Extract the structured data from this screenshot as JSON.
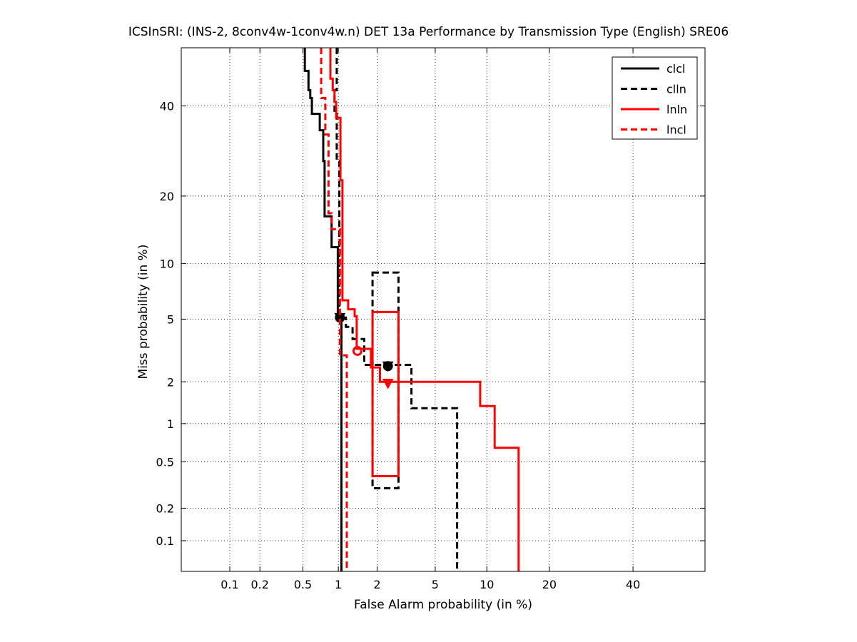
{
  "chart_data": {
    "type": "line",
    "title": "ICSInSRI: (INS-2, 8conv4w-1conv4w.n) DET 13a Performance by Transmission Type (English) SRE06",
    "xlabel": "False Alarm probability (in %)",
    "ylabel": "Miss probability (in %)",
    "x_scale": "probit",
    "y_scale": "probit",
    "xlim": [
      0.03,
      60
    ],
    "ylim": [
      0.05,
      55
    ],
    "x_ticks": [
      0.1,
      0.2,
      0.5,
      1,
      2,
      5,
      10,
      20,
      40
    ],
    "x_tick_labels": [
      "0.1",
      "0.2",
      "0.5",
      "1",
      "2",
      "5",
      "10",
      "20",
      "40"
    ],
    "y_ticks": [
      0.1,
      0.2,
      0.5,
      1,
      2,
      5,
      10,
      20,
      40
    ],
    "y_tick_labels": [
      "0.1",
      "0.2",
      "0.5",
      "1",
      "2",
      "5",
      "10",
      "20",
      "40"
    ],
    "grid": true,
    "legend_position": "top-right",
    "series": [
      {
        "name": "clcl",
        "color": "#000000",
        "dash": "solid",
        "points": [
          [
            0.52,
            55
          ],
          [
            0.52,
            49
          ],
          [
            0.56,
            49
          ],
          [
            0.56,
            44
          ],
          [
            0.58,
            44
          ],
          [
            0.58,
            42
          ],
          [
            0.6,
            42
          ],
          [
            0.6,
            38
          ],
          [
            0.7,
            38
          ],
          [
            0.7,
            34
          ],
          [
            0.75,
            34
          ],
          [
            0.75,
            27
          ],
          [
            0.77,
            27
          ],
          [
            0.77,
            16.5
          ],
          [
            0.88,
            16.5
          ],
          [
            0.88,
            12
          ],
          [
            0.99,
            12
          ],
          [
            0.99,
            5.1
          ],
          [
            1.06,
            5.1
          ],
          [
            1.06,
            0.05
          ]
        ],
        "min_dcf": [
          1.03,
          5.1
        ],
        "act_dcf": [
          1.03,
          5.1
        ]
      },
      {
        "name": "clln",
        "color": "#000000",
        "dash": "dashed",
        "points": [
          [
            0.97,
            55
          ],
          [
            0.97,
            44
          ],
          [
            0.93,
            44
          ],
          [
            0.93,
            38
          ],
          [
            0.97,
            38
          ],
          [
            0.97,
            27
          ],
          [
            1.02,
            27
          ],
          [
            1.02,
            5.1
          ],
          [
            1.15,
            5.1
          ],
          [
            1.15,
            4.5
          ],
          [
            1.3,
            4.5
          ],
          [
            1.3,
            3.8
          ],
          [
            1.6,
            3.8
          ],
          [
            1.6,
            2.6
          ],
          [
            2.4,
            2.6
          ],
          [
            2.4,
            2.6
          ],
          [
            3.5,
            2.6
          ],
          [
            3.5,
            1.3
          ],
          [
            6.8,
            1.3
          ],
          [
            6.8,
            0.05
          ]
        ],
        "min_dcf": [
          2.4,
          2.55
        ],
        "act_dcf": [
          2.4,
          2.55
        ],
        "confidence_box": {
          "x": [
            1.85,
            2.85
          ],
          "y": [
            0.3,
            9.0
          ]
        }
      },
      {
        "name": "lnln",
        "color": "#ff0000",
        "dash": "solid",
        "points": [
          [
            0.86,
            55
          ],
          [
            0.86,
            47
          ],
          [
            0.9,
            47
          ],
          [
            0.9,
            44
          ],
          [
            0.93,
            44
          ],
          [
            0.93,
            41
          ],
          [
            0.96,
            41
          ],
          [
            0.96,
            37
          ],
          [
            1.04,
            37
          ],
          [
            1.04,
            23
          ],
          [
            1.08,
            23
          ],
          [
            1.08,
            6.4
          ],
          [
            1.2,
            6.4
          ],
          [
            1.2,
            5.7
          ],
          [
            1.35,
            5.7
          ],
          [
            1.35,
            5.2
          ],
          [
            1.4,
            5.2
          ],
          [
            1.4,
            3.3
          ],
          [
            1.8,
            3.3
          ],
          [
            1.8,
            2.5
          ],
          [
            2.1,
            2.5
          ],
          [
            2.1,
            2.0
          ],
          [
            9.2,
            2.0
          ],
          [
            9.2,
            1.35
          ],
          [
            11,
            1.35
          ],
          [
            11,
            0.65
          ],
          [
            14.5,
            0.65
          ],
          [
            14.5,
            0.05
          ]
        ],
        "min_dcf": [
          1.42,
          3.2
        ],
        "act_dcf": [
          2.4,
          1.95
        ],
        "confidence_box": {
          "x": [
            1.85,
            2.85
          ],
          "y": [
            0.38,
            5.5
          ]
        }
      },
      {
        "name": "lncl",
        "color": "#ff0000",
        "dash": "dashed",
        "points": [
          [
            0.72,
            55
          ],
          [
            0.72,
            42
          ],
          [
            0.78,
            42
          ],
          [
            0.78,
            33
          ],
          [
            0.83,
            33
          ],
          [
            0.83,
            17
          ],
          [
            0.88,
            17
          ],
          [
            0.88,
            14.5
          ],
          [
            1.03,
            14.5
          ],
          [
            1.03,
            3.0
          ],
          [
            1.17,
            3.0
          ],
          [
            1.17,
            0.05
          ]
        ],
        "min_dcf": null,
        "act_dcf": null
      }
    ]
  }
}
